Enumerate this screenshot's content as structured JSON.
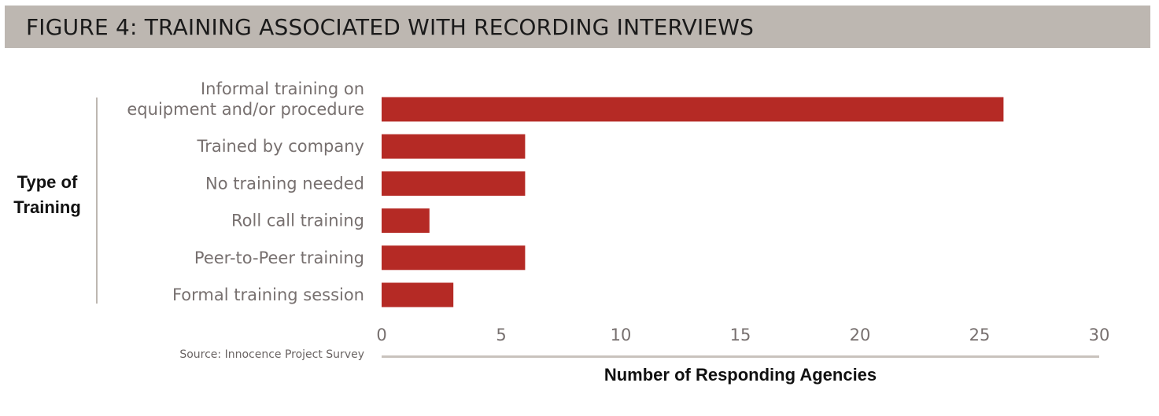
{
  "header": {
    "title": "FIGURE 4: TRAINING ASSOCIATED WITH RECORDING INTERVIEWS"
  },
  "source_note": "Source: Innocence Project Survey",
  "colors": {
    "bar": "#b52a25",
    "banner": "#bdb7b1"
  },
  "chart_data": {
    "type": "bar",
    "orientation": "horizontal",
    "categories": [
      [
        "Informal training on",
        "equipment and/or procedure"
      ],
      [
        "Trained by company"
      ],
      [
        "No training needed"
      ],
      [
        "Roll call training"
      ],
      [
        "Peer-to-Peer training"
      ],
      [
        "Formal training session"
      ]
    ],
    "values": [
      26,
      6,
      6,
      2,
      6,
      3
    ],
    "xlabel": "Number of Responding Agencies",
    "ylabel": [
      "Type of",
      "Training"
    ],
    "xlim": [
      0,
      30
    ],
    "xticks": [
      0,
      5,
      10,
      15,
      20,
      25,
      30
    ],
    "grid": false,
    "legend": "none"
  }
}
